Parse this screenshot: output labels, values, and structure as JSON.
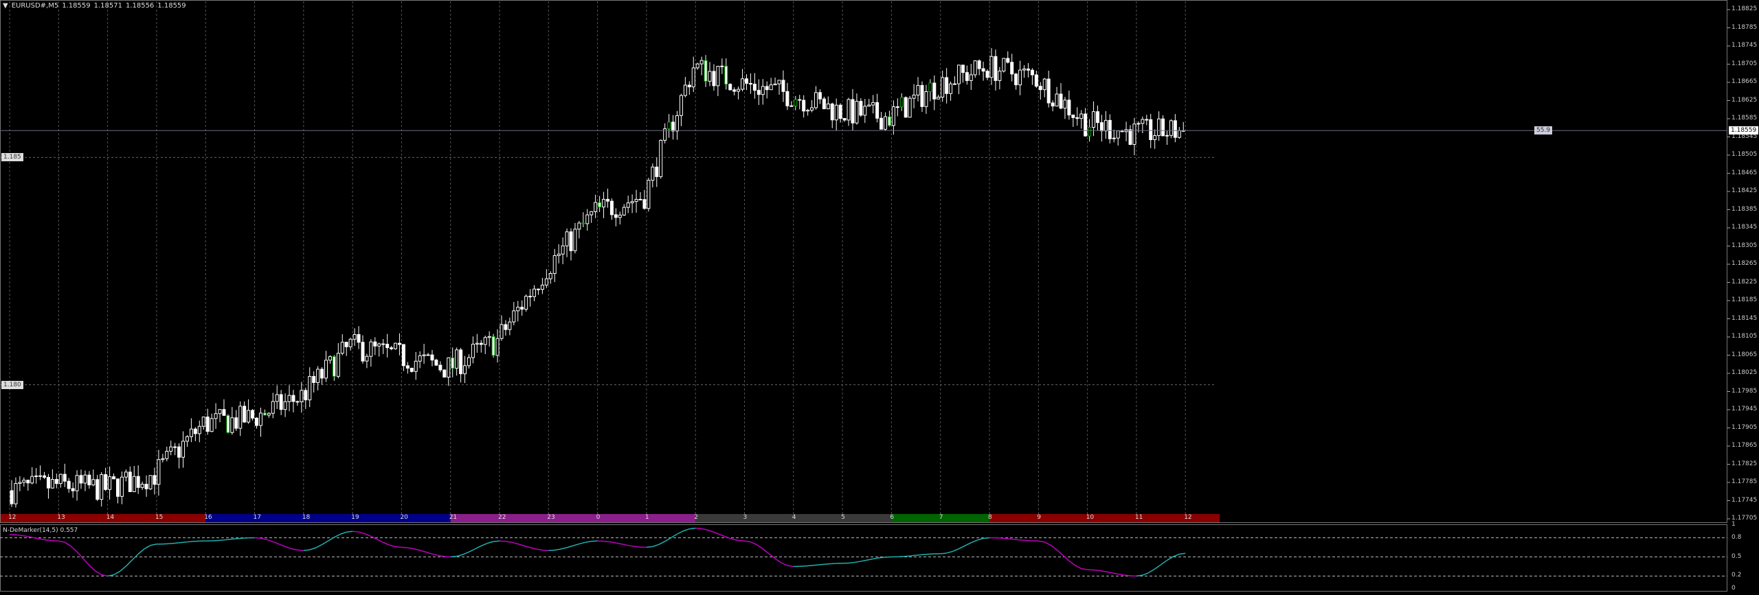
{
  "header": {
    "symbol": "EURUSD#,M5",
    "open": "1.18559",
    "high": "1.18571",
    "low": "1.18556",
    "close": "1.18559"
  },
  "price_axis": [
    "1.18825",
    "1.18785",
    "1.18745",
    "1.18705",
    "1.18665",
    "1.18625",
    "1.18585",
    "1.18545",
    "1.18505",
    "1.18465",
    "1.18425",
    "1.18385",
    "1.18345",
    "1.18305",
    "1.18265",
    "1.18225",
    "1.18185",
    "1.18145",
    "1.18105",
    "1.18065",
    "1.18025",
    "1.17985",
    "1.17945",
    "1.17905",
    "1.17865",
    "1.17825",
    "1.17785",
    "1.17745",
    "1.17705"
  ],
  "current_price": "1.18559",
  "current_price_value": 1.18559,
  "current_label": "55.9",
  "level_labels": [
    {
      "text": "1.185",
      "value": 1.185
    },
    {
      "text": "1.180",
      "value": 1.18
    }
  ],
  "hours": [
    "12",
    "13",
    "14",
    "15",
    "16",
    "17",
    "18",
    "19",
    "20",
    "21",
    "22",
    "23",
    "0",
    "1",
    "2",
    "3",
    "4",
    "5",
    "6",
    "7",
    "8",
    "9",
    "10",
    "11",
    "12"
  ],
  "session_colors": [
    {
      "from": 0,
      "to": 4,
      "color": "#8b0000"
    },
    {
      "from": 4,
      "to": 9,
      "color": "#00008b"
    },
    {
      "from": 9,
      "to": 14,
      "color": "#8b1f8b"
    },
    {
      "from": 14,
      "to": 18,
      "color": "#3a3a3a"
    },
    {
      "from": 18,
      "to": 20,
      "color": "#006400"
    },
    {
      "from": 20,
      "to": 24.7,
      "color": "#8b0000"
    }
  ],
  "price_path": [
    1.17767,
    1.17779,
    1.17772,
    1.17803,
    1.17914,
    1.17926,
    1.17975,
    1.18085,
    1.18062,
    1.18037,
    1.18097,
    1.18257,
    1.1838,
    1.18416,
    1.18699,
    1.18662,
    1.18638,
    1.18601,
    1.18589,
    1.18662,
    1.18699,
    1.18674,
    1.18577,
    1.18553,
    1.18559
  ],
  "indicator": {
    "label": "N-DeMarker(14,5) 0.557",
    "axis": [
      "1",
      "0.8",
      "0.5",
      "0.2",
      "0"
    ],
    "levels": [
      0.8,
      0.5,
      0.2
    ],
    "path": [
      0.85,
      0.75,
      0.2,
      0.7,
      0.75,
      0.8,
      0.6,
      0.9,
      0.65,
      0.5,
      0.75,
      0.6,
      0.75,
      0.65,
      0.95,
      0.75,
      0.35,
      0.4,
      0.5,
      0.55,
      0.8,
      0.75,
      0.3,
      0.2,
      0.557
    ],
    "colors": {
      "down": "#c000c0",
      "up": "#20b0b0"
    }
  },
  "colors": {
    "bull": "#ffffff",
    "bear": "#ffffff",
    "grid": "#666666"
  }
}
